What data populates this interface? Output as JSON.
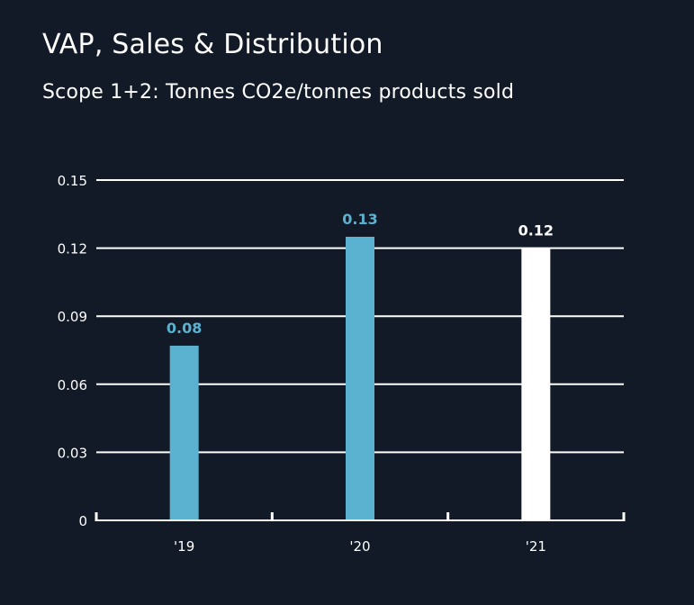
{
  "chart_data": {
    "type": "bar",
    "title": "VAP, Sales & Distribution",
    "subtitle": "Scope 1+2: Tonnes CO2e/tonnes products sold",
    "categories": [
      "'19",
      "'20",
      "'21"
    ],
    "values": [
      0.077,
      0.125,
      0.12
    ],
    "data_labels": [
      "0.08",
      "0.13",
      "0.12"
    ],
    "bar_colors": [
      "#5bb1d0",
      "#5bb1d0",
      "#ffffff"
    ],
    "label_colors": [
      "#5bb1d0",
      "#5bb1d0",
      "#ffffff"
    ],
    "yticks": [
      0,
      0.03,
      0.06,
      0.09,
      0.12,
      0.15
    ],
    "ytick_labels": [
      "0",
      "0.03",
      "0.06",
      "0.09",
      "0.12",
      "0.15"
    ],
    "ylim": [
      0,
      0.15
    ],
    "xlabel": "",
    "ylabel": "",
    "grid": true,
    "colors": {
      "background": "#121a27",
      "grid": "#ffffff",
      "text": "#ffffff"
    }
  }
}
